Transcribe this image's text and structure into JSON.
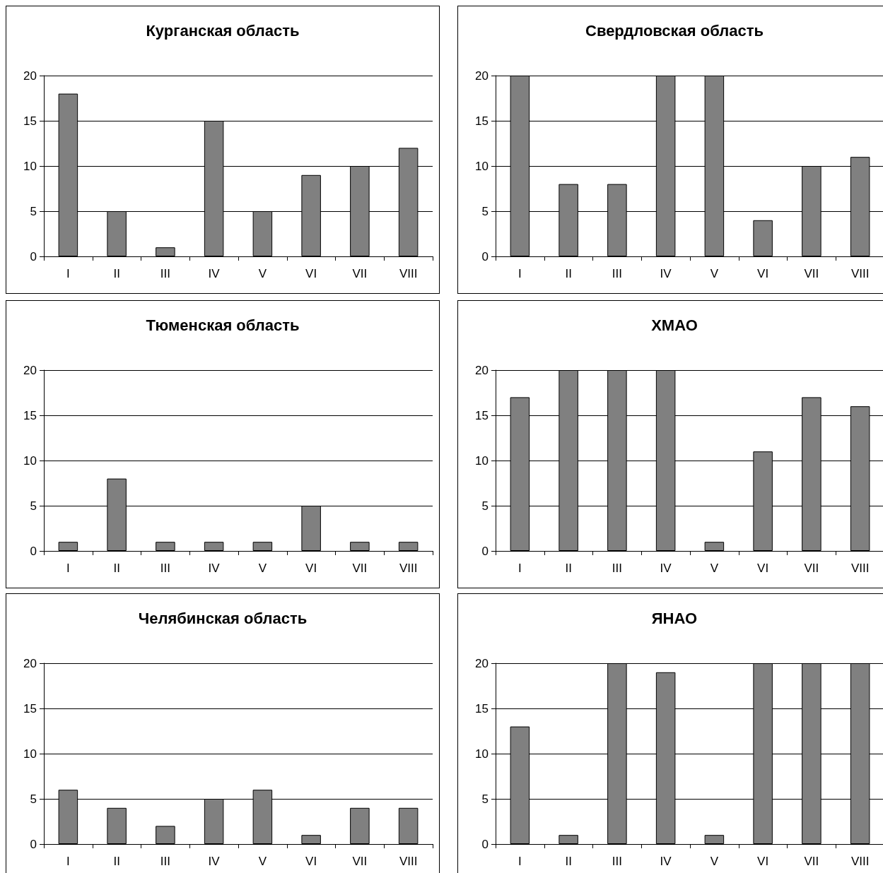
{
  "chart_data": [
    {
      "type": "bar",
      "title": "Курганская область",
      "categories": [
        "I",
        "II",
        "III",
        "IV",
        "V",
        "VI",
        "VII",
        "VIII"
      ],
      "values": [
        18,
        5,
        1,
        15,
        5,
        9,
        10,
        12
      ],
      "color": "#808080",
      "ylim": [
        0,
        20
      ],
      "yticks": [
        0,
        5,
        10,
        15,
        20
      ],
      "grid": "y"
    },
    {
      "type": "bar",
      "title": "Свердловская область",
      "categories": [
        "I",
        "II",
        "III",
        "IV",
        "V",
        "VI",
        "VII",
        "VIII"
      ],
      "values": [
        20,
        8,
        8,
        20,
        20,
        4,
        10,
        11
      ],
      "color": "#808080",
      "ylim": [
        0,
        20
      ],
      "yticks": [
        0,
        5,
        10,
        15,
        20
      ],
      "grid": "y"
    },
    {
      "type": "bar",
      "title": "Тюменская область",
      "categories": [
        "I",
        "II",
        "III",
        "IV",
        "V",
        "VI",
        "VII",
        "VIII"
      ],
      "values": [
        1,
        8,
        1,
        1,
        1,
        5,
        1,
        1
      ],
      "color": "#808080",
      "ylim": [
        0,
        20
      ],
      "yticks": [
        0,
        5,
        10,
        15,
        20
      ],
      "grid": "y"
    },
    {
      "type": "bar",
      "title": "ХМАО",
      "categories": [
        "I",
        "II",
        "III",
        "IV",
        "V",
        "VI",
        "VII",
        "VIII"
      ],
      "values": [
        17,
        20,
        20,
        20,
        1,
        11,
        17,
        16
      ],
      "color": "#808080",
      "ylim": [
        0,
        20
      ],
      "yticks": [
        0,
        5,
        10,
        15,
        20
      ],
      "grid": "y"
    },
    {
      "type": "bar",
      "title": "Челябинская область",
      "categories": [
        "I",
        "II",
        "III",
        "IV",
        "V",
        "VI",
        "VII",
        "VIII"
      ],
      "values": [
        6,
        4,
        2,
        5,
        6,
        1,
        4,
        4
      ],
      "color": "#808080",
      "ylim": [
        0,
        20
      ],
      "yticks": [
        0,
        5,
        10,
        15,
        20
      ],
      "grid": "y"
    },
    {
      "type": "bar",
      "title": "ЯНАО",
      "categories": [
        "I",
        "II",
        "III",
        "IV",
        "V",
        "VI",
        "VII",
        "VIII"
      ],
      "values": [
        13,
        1,
        20,
        19,
        1,
        20,
        20,
        20
      ],
      "color": "#808080",
      "ylim": [
        0,
        20
      ],
      "yticks": [
        0,
        5,
        10,
        15,
        20
      ],
      "grid": "y"
    }
  ]
}
